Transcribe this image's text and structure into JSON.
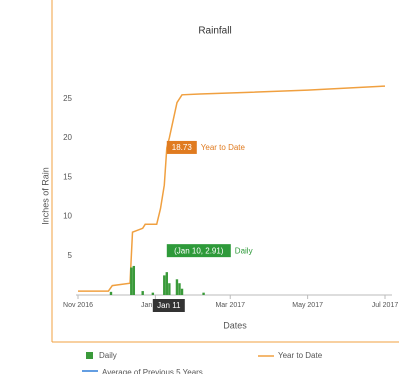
{
  "chart_data": {
    "type": "line-bar",
    "title": "Rainfall",
    "x_label": "Dates",
    "y_label": "Inches of Rain",
    "xlim": [
      "2016-11-01",
      "2017-07-01"
    ],
    "xticks": [
      {
        "value": "2016-11-01",
        "label": "Nov 2016"
      },
      {
        "value": "2017-01-01",
        "label": "Jan 2017"
      },
      {
        "value": "2017-03-01",
        "label": "Mar 2017"
      },
      {
        "value": "2017-05-01",
        "label": "May 2017"
      },
      {
        "value": "2017-07-01",
        "label": "Jul 2017"
      }
    ],
    "ylim": [
      0,
      27
    ],
    "yticks": [
      5,
      10,
      15,
      20,
      25
    ],
    "series": [
      {
        "name": "Year to Date",
        "kind": "line",
        "color": "#f0a040",
        "x": [
          "2016-11-01",
          "2016-11-25",
          "2016-11-28",
          "2016-12-12",
          "2016-12-14",
          "2016-12-22",
          "2016-12-24",
          "2017-01-02",
          "2017-01-05",
          "2017-01-08",
          "2017-01-10",
          "2017-01-12",
          "2017-01-18",
          "2017-01-22",
          "2017-02-05",
          "2017-03-15",
          "2017-05-01",
          "2017-07-01"
        ],
        "values": [
          0.5,
          0.5,
          1.2,
          1.5,
          8,
          8.5,
          9,
          9,
          11,
          14,
          18.73,
          20,
          24.5,
          25.5,
          25.6,
          25.8,
          26.1,
          26.6
        ]
      },
      {
        "name": "Daily",
        "kind": "bar",
        "color": "#3a9a3a",
        "x": [
          "2016-11-27",
          "2016-12-13",
          "2016-12-15",
          "2016-12-22",
          "2016-12-30",
          "2017-01-08",
          "2017-01-10",
          "2017-01-12",
          "2017-01-18",
          "2017-01-20",
          "2017-01-22",
          "2017-02-08"
        ],
        "values": [
          0.4,
          3.5,
          3.7,
          0.5,
          0.3,
          2.5,
          2.91,
          1.5,
          2.0,
          1.5,
          0.8,
          0.3
        ]
      },
      {
        "name": "Average of Previous 5 Years",
        "kind": "legend-only",
        "color": "#2f7ed8"
      }
    ],
    "annotations": [
      "18.73",
      "Year to Date",
      "(Jan 10, 2.91)",
      "Daily",
      "Jan 11"
    ]
  }
}
